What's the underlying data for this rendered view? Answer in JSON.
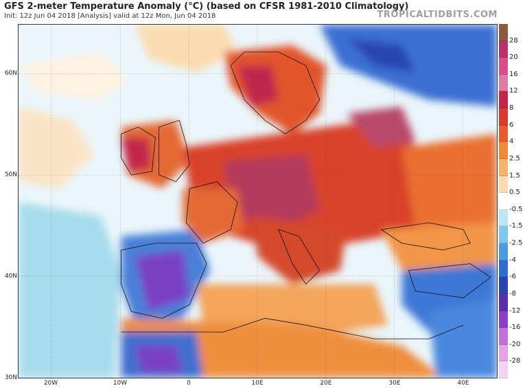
{
  "header": {
    "title": "GFS 2-meter Temperature Anomaly (°C) (based on CFSR 1981-2010 Climatology)",
    "subtitle": "Init: 12z Jun 04 2018   [Analysis]   valid at 12z Mon, Jun 04 2018",
    "brand": "TROPICALTIDBITS.COM"
  },
  "axes": {
    "lat_ticks": [
      "60N",
      "50N",
      "40N",
      "30N"
    ],
    "lon_ticks": [
      "20W",
      "10W",
      "0",
      "10E",
      "20E",
      "30E",
      "40E"
    ]
  },
  "colorbar": {
    "labels": [
      "28",
      "20",
      "16",
      "12",
      "8",
      "6",
      "4",
      "2.5",
      "1.5",
      "0.5",
      "-0.5",
      "-1.5",
      "-2.5",
      "-4",
      "-6",
      "-8",
      "-12",
      "-16",
      "-20",
      "-28"
    ],
    "colors": [
      "#8c5a3c",
      "#b8336a",
      "#d94d8c",
      "#e07aa5",
      "#c2264a",
      "#d93a2b",
      "#e85c2c",
      "#f08a3a",
      "#f5b46a",
      "#fbdcb0",
      "#ffffff",
      "#bde6f2",
      "#7ec8ec",
      "#4a9be0",
      "#2f6cd0",
      "#2a45b0",
      "#5a2ea8",
      "#8a3fc8",
      "#c070d8",
      "#e6a3e3",
      "#f6d2f2"
    ]
  },
  "map": {
    "region": "Europe / North Africa",
    "lat_range": [
      30,
      65
    ],
    "lon_range": [
      -25,
      45
    ]
  }
}
